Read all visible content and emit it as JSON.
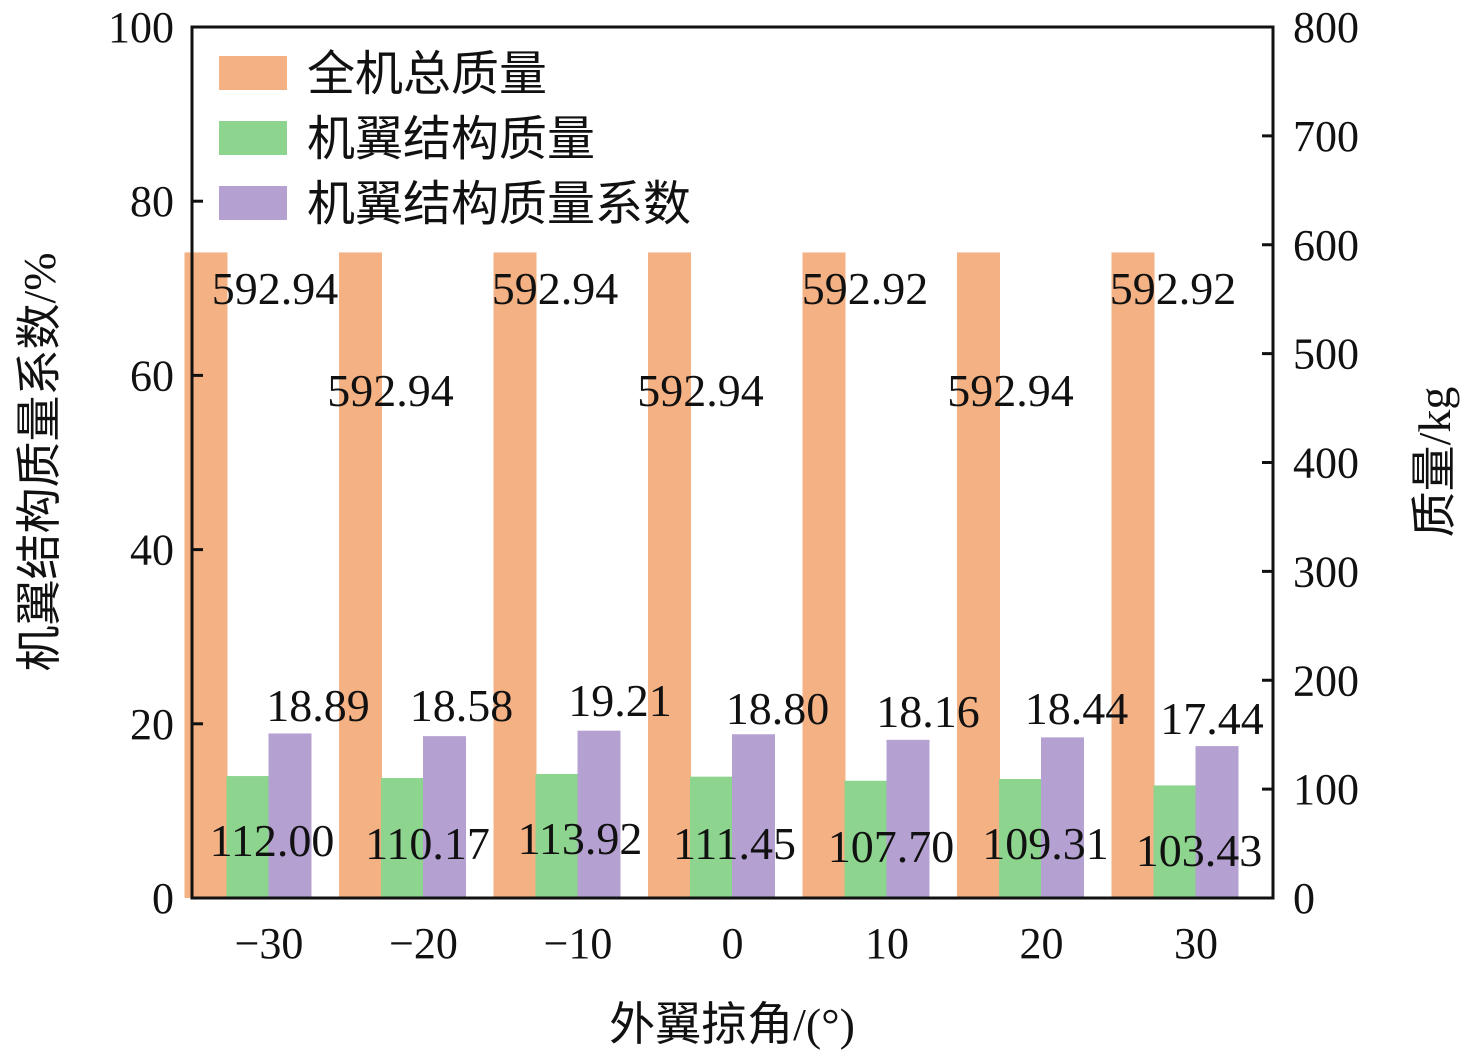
{
  "chart_data": {
    "type": "bar",
    "title": "",
    "xlabel": "外翼掠角/(°)",
    "ylabel": "机翼结构质量系数/%",
    "ylabel_right": "质量/kg",
    "categories": [
      "−30",
      "−20",
      "−10",
      "0",
      "10",
      "20",
      "30"
    ],
    "ylim": [
      0,
      100
    ],
    "ylim_right": [
      0,
      800
    ],
    "yticks": [
      "0",
      "20",
      "40",
      "60",
      "80",
      "100"
    ],
    "yticks_right": [
      "0",
      "100",
      "200",
      "300",
      "400",
      "500",
      "600",
      "700",
      "800"
    ],
    "legend_position": "top-left",
    "series": [
      {
        "name": "全机总质量",
        "axis": "right",
        "color": "#F4B183",
        "values": [
          592.94,
          592.94,
          592.94,
          592.94,
          592.92,
          592.94,
          592.92
        ],
        "labels": [
          "592.94",
          "592.94",
          "592.94",
          "592.94",
          "592.92",
          "592.94",
          "592.92"
        ]
      },
      {
        "name": "机翼结构质量",
        "axis": "right",
        "color": "#8DD48E",
        "values": [
          112.0,
          110.17,
          113.92,
          111.45,
          107.7,
          109.31,
          103.43
        ],
        "labels": [
          "112.00",
          "110.17",
          "113.92",
          "111.45",
          "107.70",
          "109.31",
          "103.43"
        ]
      },
      {
        "name": "机翼结构质量系数",
        "axis": "left",
        "color": "#B4A0D1",
        "values": [
          18.89,
          18.58,
          19.21,
          18.8,
          18.16,
          18.44,
          17.44
        ],
        "labels": [
          "18.89",
          "18.58",
          "19.21",
          "18.80",
          "18.16",
          "18.44",
          "17.44"
        ]
      }
    ]
  }
}
